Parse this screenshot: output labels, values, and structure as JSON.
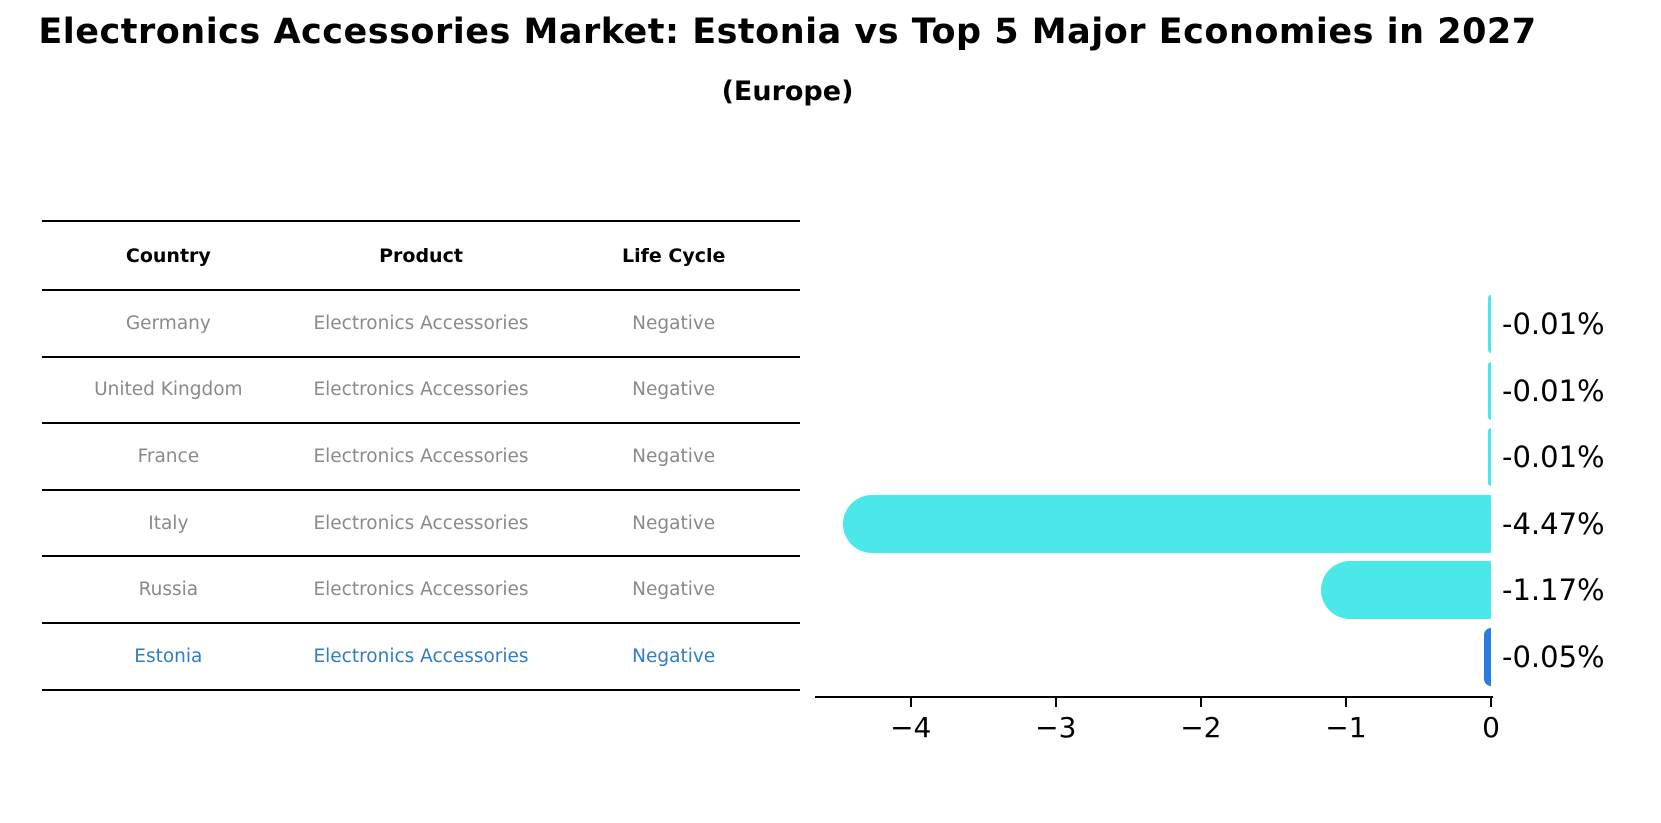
{
  "title": "Electronics Accessories Market: Estonia vs Top 5 Major Economies in 2027",
  "subtitle": "(Europe)",
  "table": {
    "headers": [
      "Country",
      "Product",
      "Life Cycle"
    ],
    "rows": [
      {
        "country": "Germany",
        "product": "Electronics Accessories",
        "life_cycle": "Negative",
        "highlight": false
      },
      {
        "country": "United Kingdom",
        "product": "Electronics Accessories",
        "life_cycle": "Negative",
        "highlight": false
      },
      {
        "country": "France",
        "product": "Electronics Accessories",
        "life_cycle": "Negative",
        "highlight": false
      },
      {
        "country": "Italy",
        "product": "Electronics Accessories",
        "life_cycle": "Negative",
        "highlight": false
      },
      {
        "country": "Russia",
        "product": "Electronics Accessories",
        "life_cycle": "Negative",
        "highlight": false
      },
      {
        "country": "Estonia",
        "product": "Electronics Accessories",
        "life_cycle": "Negative",
        "highlight": true
      }
    ]
  },
  "chart_data": {
    "type": "bar",
    "orientation": "horizontal",
    "title": "Electronics Accessories Market: Estonia vs Top 5 Major Economies in 2027",
    "subtitle": "(Europe)",
    "categories": [
      "Germany",
      "United Kingdom",
      "France",
      "Italy",
      "Russia",
      "Estonia"
    ],
    "values": [
      -0.01,
      -0.01,
      -0.01,
      -4.47,
      -1.17,
      -0.05
    ],
    "value_labels": [
      "-0.01%",
      "-0.01%",
      "-0.01%",
      "-4.47%",
      "-1.17%",
      "-0.05%"
    ],
    "xlabel": "",
    "ylabel": "",
    "xlim": [
      -4.66,
      0
    ],
    "xtick_values": [
      -4,
      -3,
      -2,
      -1,
      0
    ],
    "xtick_labels": [
      "−4",
      "−3",
      "−2",
      "−1",
      "0"
    ],
    "grid": false,
    "legend": "none",
    "highlight_index": 5
  },
  "colors": {
    "bar": "#4ae8e8",
    "highlight_bar": "#2a7de0",
    "highlight_text": "#2e7ec6",
    "table_text": "#8a8a8a",
    "axis": "#000000"
  }
}
